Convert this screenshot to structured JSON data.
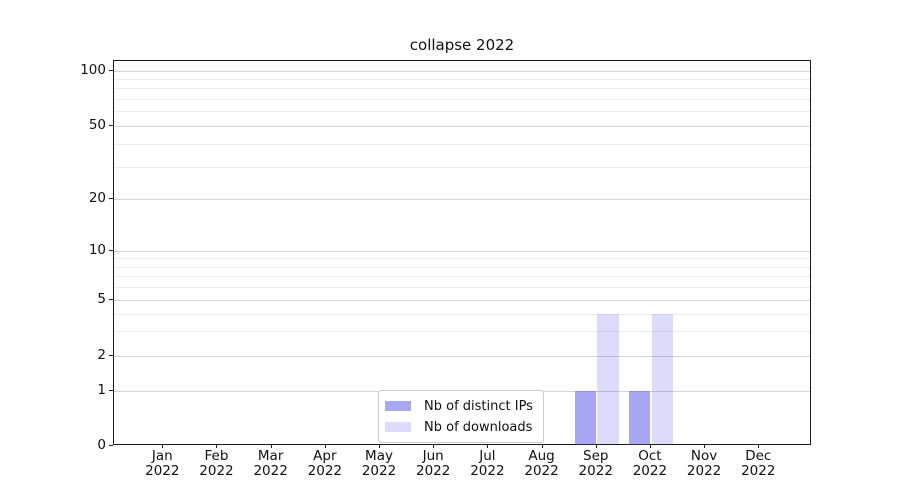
{
  "chart_data": {
    "type": "bar",
    "title": "collapse 2022",
    "categories": [
      "Jan",
      "Feb",
      "Mar",
      "Apr",
      "May",
      "Jun",
      "Jul",
      "Aug",
      "Sep",
      "Oct",
      "Nov",
      "Dec"
    ],
    "year_line": "2022",
    "series": [
      {
        "name": "Nb of distinct IPs",
        "color": "rgba(60,60,230,0.45)",
        "color_hex_on_white": "#a7a7f4",
        "values": [
          0,
          0,
          0,
          0,
          0,
          0,
          0,
          0,
          1,
          1,
          0,
          0
        ]
      },
      {
        "name": "Nb of downloads",
        "color": "rgba(60,60,230,0.18)",
        "color_hex_on_white": "#dcdcfa",
        "values": [
          0,
          0,
          0,
          0,
          0,
          0,
          0,
          0,
          4,
          4,
          0,
          0
        ]
      }
    ],
    "xlabel": "",
    "ylabel": "",
    "y_axis": {
      "scale": "log-like with linear segment to 0",
      "major_ticks": [
        0,
        1,
        2,
        5,
        10,
        20,
        50,
        100
      ],
      "minor_ticks": [
        3,
        4,
        6,
        7,
        8,
        9,
        30,
        40,
        60,
        70,
        80,
        90
      ],
      "ylim": [
        0,
        113
      ]
    },
    "grid": "horizontal major+minor",
    "legend": {
      "position": "lower center-left inside plot",
      "entries": [
        "Nb of distinct IPs",
        "Nb of downloads"
      ]
    }
  },
  "colors": {
    "background": "#ffffff",
    "axis": "#1a1a1a",
    "grid_major": "#d4d4d4",
    "grid_minor": "#ececec",
    "text": "#111111",
    "legend_border": "#cccccc"
  }
}
